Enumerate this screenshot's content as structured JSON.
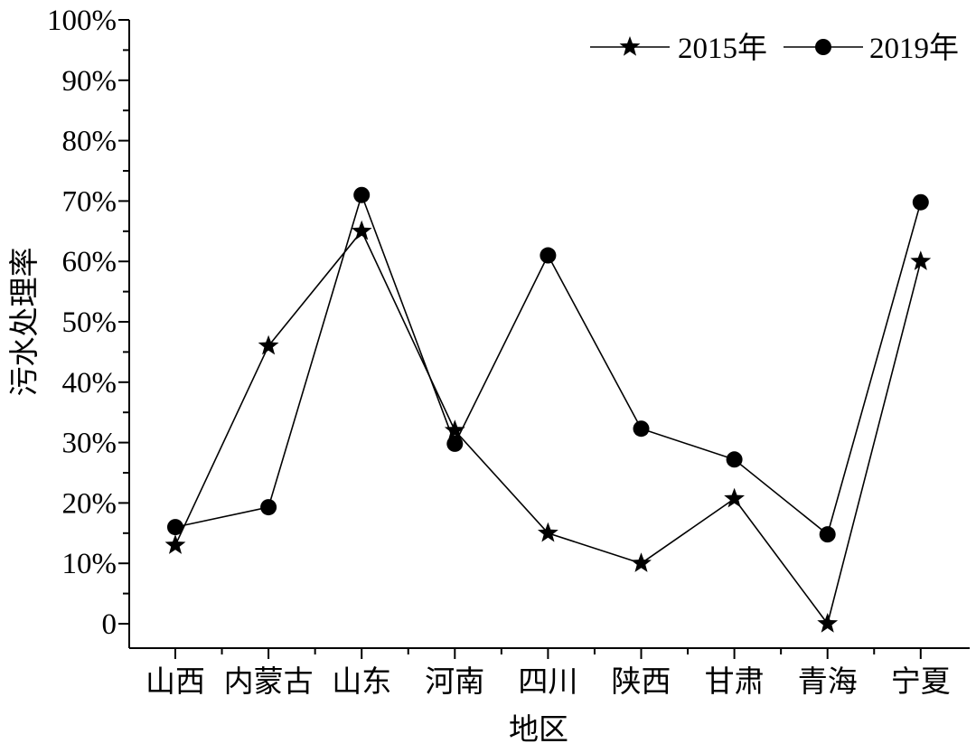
{
  "chart_data": {
    "type": "line",
    "xlabel": "地区",
    "ylabel": "污水处理率",
    "categories": [
      "山西",
      "内蒙古",
      "山东",
      "河南",
      "四川",
      "陕西",
      "甘肃",
      "青海",
      "宁夏"
    ],
    "ylim": [
      0,
      100
    ],
    "yticks": [
      0,
      10,
      20,
      30,
      40,
      50,
      60,
      70,
      80,
      90,
      100
    ],
    "ytick_labels": [
      "0",
      "10%",
      "20%",
      "30%",
      "40%",
      "50%",
      "60%",
      "70%",
      "80%",
      "90%",
      "100%"
    ],
    "grid": false,
    "legend": {
      "position": "top-right"
    },
    "series": [
      {
        "name": "2015年",
        "marker": "star",
        "color": "#000000",
        "values": [
          13,
          46,
          65,
          32,
          15,
          10,
          20.7,
          0,
          60
        ]
      },
      {
        "name": "2019年",
        "marker": "circle",
        "color": "#000000",
        "values": [
          16,
          19.3,
          71,
          29.8,
          61,
          32.3,
          27.2,
          14.8,
          69.8
        ]
      }
    ]
  }
}
